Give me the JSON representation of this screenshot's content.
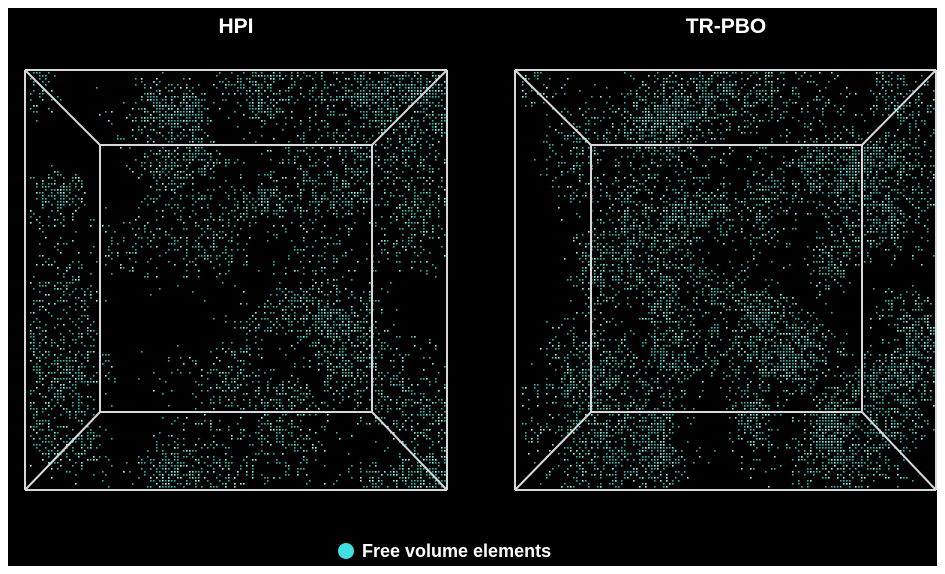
{
  "panels": [
    {
      "title": "HPI"
    },
    {
      "title": "TR-PBO"
    }
  ],
  "legend": {
    "label": "Free volume elements"
  }
}
